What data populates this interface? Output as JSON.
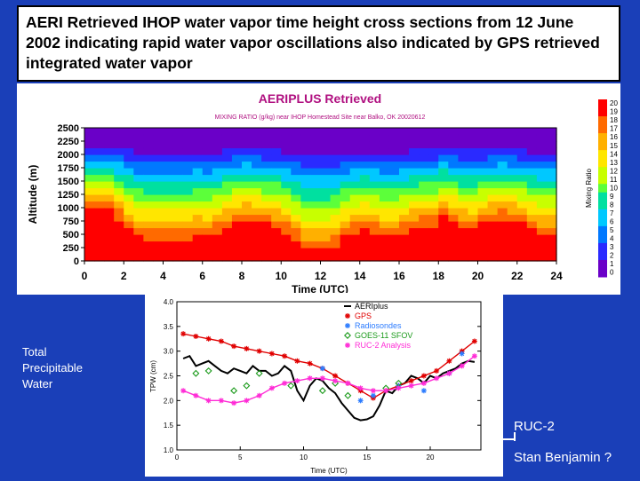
{
  "slide": {
    "title": "AERI Retrieved IHOP water vapor time height cross sections from 12 June 2002 indicating rapid water vapor oscillations also indicated by GPS retrieved integrated water vapor",
    "background_color": "#1a3fb8",
    "side_label": "Total Precipitable Water",
    "ruc_note": "RUC-2",
    "author_note": "Stan Benjamin ?"
  },
  "chart_data": [
    {
      "type": "heatmap",
      "title": "AERIPLUS Retrieved",
      "subtitle": "MIXING RATIO (g/kg)   near IHOP Homestead Site near Balko, OK 20020612",
      "xlabel": "Time (UTC)",
      "ylabel": "Altitude (m)",
      "colorbar_label": "Mixing Ratio",
      "x_ticks": [
        "0",
        "2",
        "4",
        "6",
        "8",
        "10",
        "12",
        "14",
        "16",
        "18",
        "20",
        "22",
        "24"
      ],
      "y_ticks": [
        "0",
        "250",
        "500",
        "750",
        "1000",
        "1250",
        "1500",
        "1750",
        "2000",
        "2250",
        "2500"
      ],
      "xlim": [
        0,
        24
      ],
      "ylim": [
        0,
        2500
      ],
      "colorbar_ticks": [
        "20",
        "19",
        "18",
        "17",
        "16",
        "15",
        "14",
        "13",
        "12",
        "11",
        "10",
        "9",
        "8",
        "7",
        "6",
        "5",
        "4",
        "3",
        "2",
        "1",
        "0"
      ],
      "colormap": [
        "#ff0000",
        "#ff6a00",
        "#ffb000",
        "#ffe600",
        "#c8ff00",
        "#5cff3a",
        "#00e0a0",
        "#00c8ff",
        "#0078ff",
        "#2a2aff",
        "#6a00c8"
      ],
      "grid": false
    },
    {
      "type": "line",
      "xlabel": "Time (UTC)",
      "ylabel": "TPW (cm)",
      "xlim": [
        0,
        24
      ],
      "ylim": [
        1.0,
        4.0
      ],
      "x_ticks": [
        "0",
        "5",
        "10",
        "15",
        "20"
      ],
      "y_ticks": [
        "1.0",
        "1.5",
        "2.0",
        "2.5",
        "3.0",
        "3.5",
        "4.0"
      ],
      "legend_position": "top-right",
      "series": [
        {
          "name": "AERIplus",
          "color": "#000000",
          "marker": "line",
          "x": [
            0.5,
            1,
            1.5,
            2,
            2.5,
            3,
            3.5,
            4,
            4.5,
            5,
            5.5,
            6,
            6.5,
            7,
            7.5,
            8,
            8.5,
            9,
            9.5,
            10,
            10.5,
            11,
            11.5,
            12,
            12.5,
            13,
            13.5,
            14,
            14.5,
            15,
            15.5,
            16,
            16.5,
            17,
            17.5,
            18,
            18.5,
            19,
            19.5,
            20,
            20.5,
            21,
            21.5,
            22,
            22.5,
            23,
            23.5
          ],
          "y": [
            2.85,
            2.9,
            2.7,
            2.75,
            2.8,
            2.7,
            2.6,
            2.55,
            2.65,
            2.6,
            2.55,
            2.7,
            2.6,
            2.6,
            2.5,
            2.55,
            2.7,
            2.6,
            2.2,
            2.0,
            2.3,
            2.45,
            2.4,
            2.25,
            2.15,
            1.95,
            1.8,
            1.65,
            1.6,
            1.62,
            1.68,
            1.9,
            2.2,
            2.15,
            2.3,
            2.35,
            2.5,
            2.45,
            2.35,
            2.5,
            2.45,
            2.55,
            2.6,
            2.65,
            2.75,
            2.8,
            2.78
          ]
        },
        {
          "name": "GPS",
          "color": "#e00000",
          "marker": "asterisk",
          "x": [
            0.5,
            1.5,
            2.5,
            3.5,
            4.5,
            5.5,
            6.5,
            7.5,
            8.5,
            9.5,
            10.5,
            11.5,
            12.5,
            13.5,
            14.5,
            15.5,
            16.5,
            17.5,
            18.5,
            19.5,
            20.5,
            21.5,
            22.5,
            23.5
          ],
          "y": [
            3.35,
            3.3,
            3.25,
            3.2,
            3.1,
            3.05,
            3.0,
            2.95,
            2.9,
            2.8,
            2.75,
            2.65,
            2.5,
            2.35,
            2.2,
            2.05,
            2.2,
            2.3,
            2.4,
            2.5,
            2.6,
            2.8,
            3.0,
            3.2
          ]
        },
        {
          "name": "Radiosondes",
          "color": "#2c7cff",
          "marker": "asterisk",
          "x": [
            11.5,
            14.5,
            15.5,
            17.5,
            19.5,
            21.5,
            22.5
          ],
          "y": [
            2.65,
            2.0,
            2.1,
            2.3,
            2.2,
            2.55,
            2.95
          ]
        },
        {
          "name": "GOES-11 SFOV",
          "color": "#1a9a1a",
          "marker": "diamond",
          "x": [
            1.5,
            2.5,
            4.5,
            5.5,
            6.5,
            9.0,
            11.5,
            12.5,
            13.5,
            16.5,
            17.5
          ],
          "y": [
            2.55,
            2.6,
            2.2,
            2.3,
            2.55,
            2.3,
            2.2,
            2.35,
            2.1,
            2.25,
            2.35
          ]
        },
        {
          "name": "RUC-2 Analysis",
          "color": "#ff2cd6",
          "marker": "asterisk",
          "x": [
            0.5,
            1.5,
            2.5,
            3.5,
            4.5,
            5.5,
            6.5,
            7.5,
            8.5,
            9.5,
            10.5,
            11.5,
            12.5,
            13.5,
            14.5,
            15.5,
            16.5,
            17.5,
            18.5,
            19.5,
            20.5,
            21.5,
            22.5,
            23.5
          ],
          "y": [
            2.2,
            2.1,
            2.0,
            2.0,
            1.95,
            2.0,
            2.1,
            2.25,
            2.35,
            2.4,
            2.45,
            2.45,
            2.4,
            2.35,
            2.25,
            2.2,
            2.2,
            2.25,
            2.3,
            2.35,
            2.45,
            2.55,
            2.7,
            2.9
          ]
        }
      ]
    }
  ]
}
